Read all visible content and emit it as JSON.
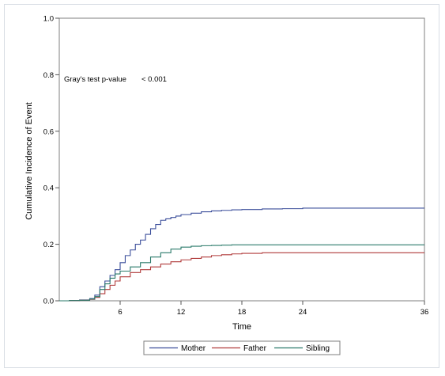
{
  "chart_data": {
    "type": "line",
    "title": "",
    "xlabel": "Time",
    "ylabel": "Cumulative Incidence of Event",
    "xlim": [
      0,
      36
    ],
    "ylim": [
      0,
      1.0
    ],
    "x_ticks": [
      6,
      12,
      18,
      24,
      36
    ],
    "x_tick_labels": [
      "6",
      "12",
      "18",
      "24",
      "36"
    ],
    "y_ticks": [
      0.0,
      0.2,
      0.4,
      0.6,
      0.8,
      1.0
    ],
    "y_tick_labels": [
      "0.0",
      "0.2",
      "0.4",
      "0.6",
      "0.8",
      "1.0"
    ],
    "grid": false,
    "legend_position": "bottom",
    "annotation": {
      "label": "Gray's test p-value",
      "value": "< 0.001"
    },
    "series": [
      {
        "name": "Mother",
        "color": "#3a4d9a",
        "points": [
          [
            0,
            0
          ],
          [
            1,
            0.001
          ],
          [
            2,
            0.003
          ],
          [
            3,
            0.008
          ],
          [
            3.5,
            0.02
          ],
          [
            4,
            0.05
          ],
          [
            4.5,
            0.07
          ],
          [
            5,
            0.09
          ],
          [
            5.5,
            0.11
          ],
          [
            6,
            0.135
          ],
          [
            6.5,
            0.16
          ],
          [
            7,
            0.18
          ],
          [
            7.5,
            0.2
          ],
          [
            8,
            0.215
          ],
          [
            8.5,
            0.235
          ],
          [
            9,
            0.255
          ],
          [
            9.5,
            0.27
          ],
          [
            10,
            0.285
          ],
          [
            10.5,
            0.29
          ],
          [
            11,
            0.295
          ],
          [
            11.5,
            0.3
          ],
          [
            12,
            0.305
          ],
          [
            13,
            0.31
          ],
          [
            14,
            0.315
          ],
          [
            15,
            0.318
          ],
          [
            16,
            0.32
          ],
          [
            17,
            0.322
          ],
          [
            18,
            0.323
          ],
          [
            20,
            0.325
          ],
          [
            22,
            0.326
          ],
          [
            24,
            0.328
          ],
          [
            30,
            0.328
          ],
          [
            36,
            0.328
          ]
        ]
      },
      {
        "name": "Father",
        "color": "#b03a3a",
        "points": [
          [
            0,
            0
          ],
          [
            1,
            0.001
          ],
          [
            2,
            0.002
          ],
          [
            3,
            0.005
          ],
          [
            3.5,
            0.012
          ],
          [
            4,
            0.025
          ],
          [
            4.5,
            0.04
          ],
          [
            5,
            0.055
          ],
          [
            5.5,
            0.07
          ],
          [
            6,
            0.085
          ],
          [
            7,
            0.1
          ],
          [
            8,
            0.11
          ],
          [
            9,
            0.12
          ],
          [
            10,
            0.13
          ],
          [
            11,
            0.138
          ],
          [
            12,
            0.145
          ],
          [
            13,
            0.15
          ],
          [
            14,
            0.155
          ],
          [
            15,
            0.16
          ],
          [
            16,
            0.163
          ],
          [
            17,
            0.166
          ],
          [
            18,
            0.168
          ],
          [
            20,
            0.17
          ],
          [
            24,
            0.17
          ],
          [
            30,
            0.17
          ],
          [
            36,
            0.17
          ]
        ]
      },
      {
        "name": "Sibling",
        "color": "#2a7a6a",
        "points": [
          [
            0,
            0
          ],
          [
            1,
            0.001
          ],
          [
            2,
            0.002
          ],
          [
            3,
            0.006
          ],
          [
            3.5,
            0.015
          ],
          [
            4,
            0.04
          ],
          [
            4.5,
            0.06
          ],
          [
            5,
            0.08
          ],
          [
            5.5,
            0.095
          ],
          [
            6,
            0.105
          ],
          [
            7,
            0.12
          ],
          [
            8,
            0.135
          ],
          [
            9,
            0.155
          ],
          [
            10,
            0.17
          ],
          [
            11,
            0.183
          ],
          [
            12,
            0.19
          ],
          [
            13,
            0.193
          ],
          [
            14,
            0.195
          ],
          [
            15,
            0.196
          ],
          [
            16,
            0.197
          ],
          [
            17,
            0.198
          ],
          [
            18,
            0.198
          ],
          [
            24,
            0.198
          ],
          [
            30,
            0.198
          ],
          [
            36,
            0.198
          ]
        ]
      }
    ]
  }
}
